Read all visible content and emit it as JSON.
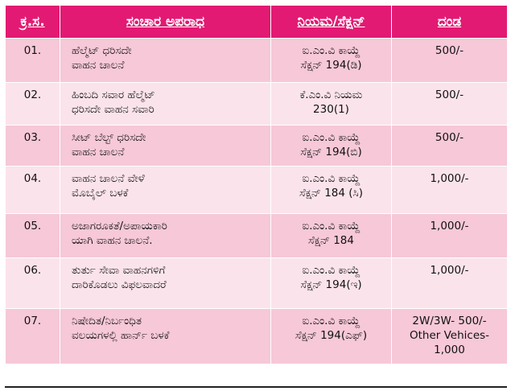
{
  "headers": [
    "ಕ್ರ.ಸ.",
    "ಸಂಚಾರ ಅಪರಾಧ",
    "ನಿಯಮ/ಸೆಕ್ಷನ್",
    "ದಂಡ"
  ],
  "rows": [
    {
      "no": "01.",
      "offense": [
        "ಹೆಲ್ಮೆಟ್ ಧರಿಸದೇ",
        "ವಾಹನ ಚಾಲನೆ"
      ],
      "rule": [
        "ಐ.ಎಂ.ವಿ ಕಾಯ್ದೆ",
        "ಸೆಕ್ಷನ್ 194(ಡಿ)"
      ],
      "fine": [
        "500/-"
      ]
    },
    {
      "no": "02.",
      "offense": [
        "ಹಿಂಬದಿ ಸವಾರ ಹೆಲ್ಮೆಟ್",
        "ಧರಿಸದೇ ವಾಹನ ಸವಾರಿ"
      ],
      "rule": [
        "ಕೆ.ಎಂ.ವಿ ನಿಯಮ",
        "230(1)"
      ],
      "fine": [
        "500/-"
      ]
    },
    {
      "no": "03.",
      "offense": [
        "ಸೀಟ್ ಬೆಲ್ಟ್ ಧರಿಸದೇ",
        "ವಾಹನ ಚಾಲನೆ"
      ],
      "rule": [
        "ಐ.ಎಂ.ವಿ ಕಾಯ್ದೆ",
        "ಸೆಕ್ಷನ್ 194(ಬಿ)"
      ],
      "fine": [
        "500/-"
      ]
    },
    {
      "no": "04.",
      "offense": [
        "ವಾಹನ ಚಾಲನೆ ವೇಳೆ",
        "ಮೊಬೈಲ್ ಬಳಕೆ"
      ],
      "rule": [
        "ಐ.ಎಂ.ವಿ ಕಾಯ್ದೆ",
        "ಸೆಕ್ಷನ್ 184 (ಸಿ)"
      ],
      "fine": [
        "1,000/-"
      ]
    },
    {
      "no": "05.",
      "offense": [
        "ಅಜಾಗರೂಕತೆ/ಅಪಾಯಕಾರಿ",
        "ಯಾಗಿ ವಾಹನ ಚಾಲನೆ."
      ],
      "rule": [
        "ಐ.ಎಂ.ವಿ ಕಾಯ್ದೆ",
        "ಸೆಕ್ಷನ್ 184"
      ],
      "fine": [
        "1,000/-"
      ]
    },
    {
      "no": "06.",
      "offense": [
        "ತುರ್ತು ಸೇವಾ ವಾಹನಗಳಿಗೆ",
        "ದಾರಿಕೊಡಲು ವಿಫಲವಾದರೆ"
      ],
      "rule": [
        "ಐ.ಎಂ.ವಿ ಕಾಯ್ದೆ",
        "ಸೆಕ್ಷನ್ 194(ಇ)"
      ],
      "fine": [
        "1,000/-"
      ]
    },
    {
      "no": "07.",
      "offense": [
        "ನಿಷೇದಿತ/ನಿರ್ಬಂಧಿತ",
        "ವಲಯಗಳಲ್ಲಿ ಹಾರ್ನ್ ಬಳಕೆ"
      ],
      "rule": [
        "ಐ.ಎಂ.ವಿ ಕಾಯ್ದೆ",
        "ಸೆಕ್ಷನ್ 194(ಎಫ್)"
      ],
      "fine": [
        "2W/3W- 500/-",
        "Other Vehices-",
        "1,000"
      ]
    }
  ],
  "colors": {
    "header_bg": "#e21a73",
    "row_dark": "#f6c8d8",
    "row_light": "#fbe3eb"
  }
}
